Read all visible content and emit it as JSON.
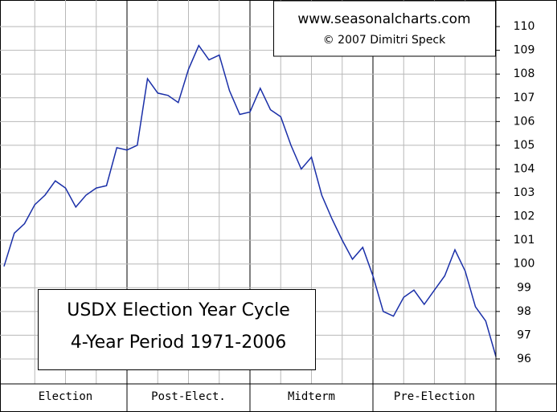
{
  "chart_data": {
    "type": "line",
    "title": "USDX Election Year Cycle",
    "subtitle": "4-Year Period 1971-2006",
    "annotations": [
      "www.seasonalcharts.com",
      "© 2007  Dimitri Speck"
    ],
    "period_labels": [
      "Election",
      "Post-Elect.",
      "Midterm",
      "Pre-Election"
    ],
    "series": [
      {
        "name": "USDX",
        "color": "#1a2fa8",
        "values": [
          99.9,
          101.3,
          101.7,
          102.5,
          102.9,
          103.5,
          103.2,
          102.4,
          102.9,
          103.2,
          103.3,
          104.9,
          104.8,
          105.0,
          107.8,
          107.2,
          107.1,
          106.8,
          108.2,
          109.2,
          108.6,
          108.8,
          107.3,
          106.3,
          106.4,
          107.4,
          106.5,
          106.2,
          105.0,
          104.0,
          104.5,
          102.9,
          101.9,
          101.0,
          100.2,
          100.7,
          99.5,
          98.0,
          97.8,
          98.6,
          98.9,
          98.3,
          98.9,
          99.5,
          100.6,
          99.7,
          98.2,
          97.6,
          96.1
        ]
      }
    ],
    "ylim": [
      94.95,
      110.95
    ],
    "yticks": [
      96,
      97,
      98,
      99,
      100,
      101,
      102,
      103,
      104,
      105,
      106,
      107,
      108,
      109,
      110
    ],
    "grid": true
  }
}
